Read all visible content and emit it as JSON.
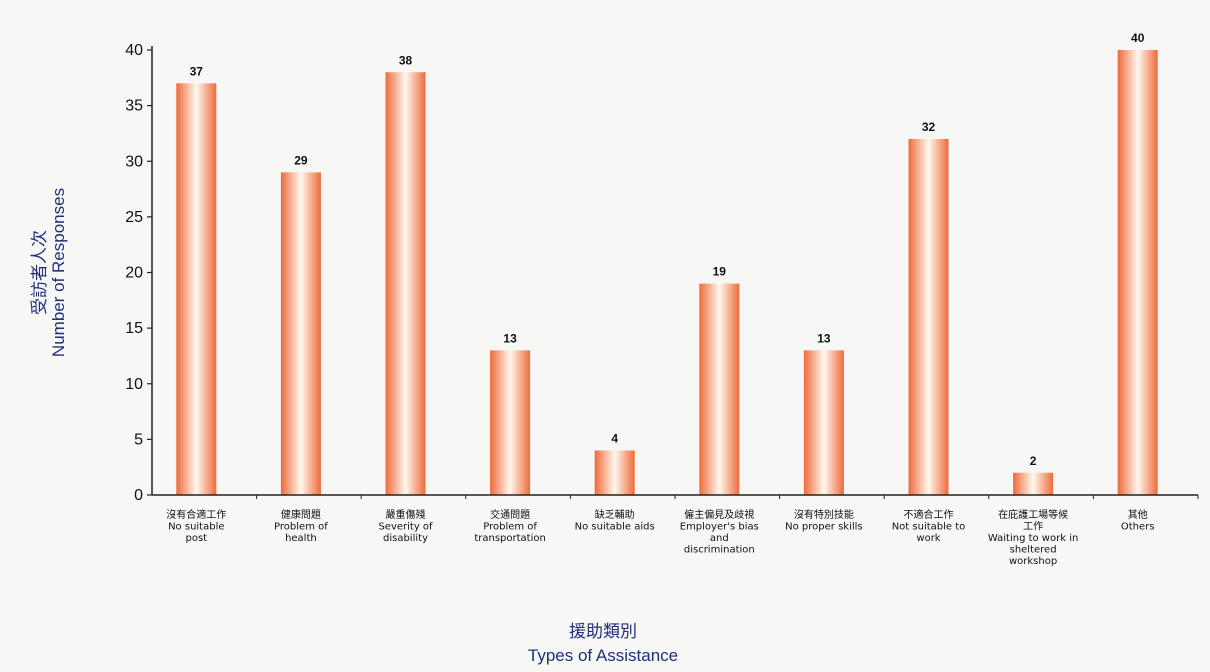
{
  "chart_data": {
    "type": "bar",
    "categories": [
      [
        "沒有合適工作",
        "No suitable",
        "post"
      ],
      [
        "健康問題",
        "Problem of",
        "health"
      ],
      [
        "嚴重傷殘",
        "Severity of",
        "disability"
      ],
      [
        "交通問題",
        "Problem of",
        "transportation"
      ],
      [
        "缺乏輔助",
        "No suitable aids"
      ],
      [
        "僱主偏見及歧視",
        "Employer's bias",
        "and",
        "discrimination"
      ],
      [
        "沒有特別技能",
        "No proper skills"
      ],
      [
        "不適合工作",
        "Not suitable to",
        "work"
      ],
      [
        "在庇護工場等候",
        "工作",
        "Waiting to work in",
        "sheltered",
        "workshop"
      ],
      [
        "其他",
        "Others"
      ]
    ],
    "values": [
      37,
      29,
      38,
      13,
      4,
      19,
      13,
      32,
      2,
      40
    ],
    "value_labels": [
      "37",
      "29",
      "38",
      "13",
      "4",
      "19",
      "13",
      "32",
      "2",
      "40"
    ],
    "ylim": [
      0,
      40
    ],
    "yticks": [
      "0",
      "5",
      "10",
      "15",
      "20",
      "25",
      "30",
      "35",
      "40"
    ],
    "ylabel": [
      "受訪者人次",
      "Number of Responses"
    ],
    "xlabel": [
      "援助類別",
      "Types of Assistance"
    ],
    "grid": false,
    "colors": {
      "bar_edge": "#ef6a3a",
      "bar_center": "#fff8ef",
      "axis": "#222222",
      "axis_title": "#1f2f7a"
    }
  }
}
